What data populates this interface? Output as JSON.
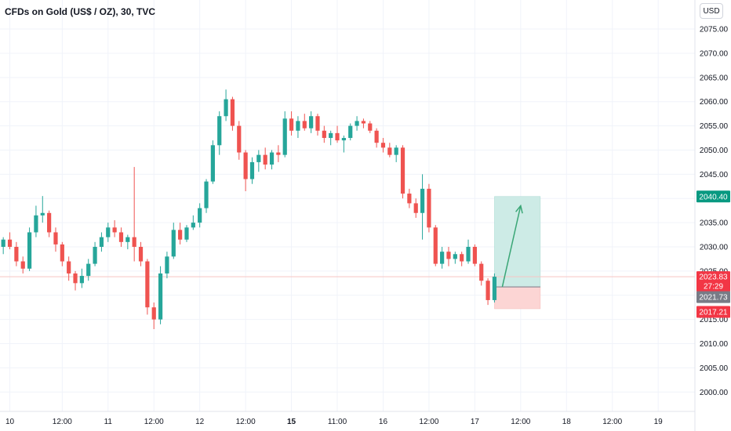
{
  "header": {
    "title": "CFDs on Gold (US$ / OZ), 30, TVC",
    "currency": "USD"
  },
  "colors": {
    "up": "#26a69a",
    "down": "#ef5350",
    "grid": "#f0f3fa",
    "axis_text": "#131722",
    "profit_zone": "#cdebe6",
    "loss_zone": "#fcd5d4",
    "current_price_line": "#f7c5c3",
    "arrow": "#3aa676",
    "label_green": "#089981",
    "label_red": "#f23645",
    "label_gray": "#787b86"
  },
  "chart_data": {
    "type": "candlestick",
    "title": "CFDs on Gold (US$ / OZ), 30, TVC",
    "xlabel": "",
    "ylabel": "",
    "ylim": [
      1996,
      2081
    ],
    "xlim": [
      0,
      106
    ],
    "grid": true,
    "y_ticks": [
      2000,
      2005,
      2010,
      2015,
      2020,
      2025,
      2030,
      2035,
      2040,
      2045,
      2050,
      2055,
      2060,
      2065,
      2070,
      2075
    ],
    "y_tick_labels": [
      "2000.00",
      "2005.00",
      "2010.00",
      "2015.00",
      "2020.00",
      "2025.00",
      "2030.00",
      "2035.00",
      "2040.00",
      "2045.00",
      "2050.00",
      "2055.00",
      "2060.00",
      "2065.00",
      "2070.00",
      "2075.00"
    ],
    "x_ticks": [
      {
        "label": "10",
        "t": 1.5,
        "bold": false
      },
      {
        "label": "12:00",
        "t": 9.5,
        "bold": false
      },
      {
        "label": "11",
        "t": 16.5,
        "bold": false
      },
      {
        "label": "12:00",
        "t": 23.5,
        "bold": false
      },
      {
        "label": "12",
        "t": 30.5,
        "bold": false
      },
      {
        "label": "12:00",
        "t": 37.5,
        "bold": false
      },
      {
        "label": "15",
        "t": 44.5,
        "bold": true
      },
      {
        "label": "11:00",
        "t": 51.5,
        "bold": false
      },
      {
        "label": "16",
        "t": 58.5,
        "bold": false
      },
      {
        "label": "12:00",
        "t": 65.5,
        "bold": false
      },
      {
        "label": "17",
        "t": 72.5,
        "bold": false
      },
      {
        "label": "12:00",
        "t": 79.5,
        "bold": false
      },
      {
        "label": "18",
        "t": 86.5,
        "bold": false
      },
      {
        "label": "12:00",
        "t": 93.5,
        "bold": false
      },
      {
        "label": "19",
        "t": 100.5,
        "bold": false
      }
    ],
    "candles": [
      [
        2030.0,
        2032.0,
        2028.5,
        2031.5
      ],
      [
        2031.5,
        2033.0,
        2029.5,
        2030.0
      ],
      [
        2030.0,
        2031.0,
        2026.0,
        2027.0
      ],
      [
        2027.0,
        2028.0,
        2024.5,
        2025.5
      ],
      [
        2025.5,
        2034.0,
        2025.0,
        2033.0
      ],
      [
        2033.0,
        2038.5,
        2032.0,
        2036.5
      ],
      [
        2036.5,
        2040.5,
        2035.0,
        2037.0
      ],
      [
        2037.0,
        2037.5,
        2032.0,
        2033.0
      ],
      [
        2033.0,
        2034.0,
        2029.0,
        2030.5
      ],
      [
        2030.5,
        2031.0,
        2026.0,
        2027.0
      ],
      [
        2027.0,
        2028.0,
        2023.0,
        2024.5
      ],
      [
        2024.5,
        2025.0,
        2021.0,
        2022.5
      ],
      [
        2022.5,
        2025.5,
        2021.5,
        2024.0
      ],
      [
        2024.0,
        2027.5,
        2023.0,
        2026.5
      ],
      [
        2026.5,
        2031.0,
        2026.0,
        2030.0
      ],
      [
        2030.0,
        2033.0,
        2029.0,
        2032.0
      ],
      [
        2032.0,
        2035.0,
        2031.0,
        2034.0
      ],
      [
        2034.0,
        2035.5,
        2032.0,
        2033.0
      ],
      [
        2033.0,
        2034.0,
        2030.0,
        2031.0
      ],
      [
        2031.0,
        2032.5,
        2029.5,
        2032.0
      ],
      [
        2032.0,
        2046.5,
        2027.0,
        2030.0
      ],
      [
        2030.0,
        2031.0,
        2026.0,
        2027.0
      ],
      [
        2027.0,
        2027.5,
        2016.0,
        2017.5
      ],
      [
        2017.5,
        2018.5,
        2013.0,
        2015.0
      ],
      [
        2015.0,
        2026.0,
        2014.0,
        2024.5
      ],
      [
        2024.5,
        2029.0,
        2023.5,
        2028.0
      ],
      [
        2028.0,
        2035.0,
        2027.5,
        2033.5
      ],
      [
        2033.5,
        2035.0,
        2030.5,
        2031.5
      ],
      [
        2031.5,
        2034.5,
        2031.0,
        2034.0
      ],
      [
        2034.0,
        2036.5,
        2033.5,
        2035.0
      ],
      [
        2035.0,
        2039.0,
        2034.0,
        2038.0
      ],
      [
        2038.0,
        2044.0,
        2037.0,
        2043.5
      ],
      [
        2043.5,
        2052.0,
        2043.0,
        2051.0
      ],
      [
        2051.0,
        2058.0,
        2049.0,
        2057.0
      ],
      [
        2057.0,
        2062.5,
        2056.0,
        2060.5
      ],
      [
        2060.5,
        2061.0,
        2054.0,
        2055.0
      ],
      [
        2055.0,
        2056.0,
        2048.0,
        2049.5
      ],
      [
        2049.5,
        2050.0,
        2041.5,
        2044.0
      ],
      [
        2044.0,
        2048.5,
        2043.0,
        2047.5
      ],
      [
        2047.5,
        2050.0,
        2045.5,
        2049.0
      ],
      [
        2049.0,
        2050.5,
        2046.0,
        2047.0
      ],
      [
        2047.0,
        2050.0,
        2046.0,
        2049.5
      ],
      [
        2049.5,
        2051.0,
        2047.5,
        2049.0
      ],
      [
        2049.0,
        2058.0,
        2048.5,
        2056.5
      ],
      [
        2056.5,
        2058.0,
        2053.0,
        2054.0
      ],
      [
        2054.0,
        2057.0,
        2052.5,
        2056.0
      ],
      [
        2056.0,
        2057.5,
        2054.0,
        2054.5
      ],
      [
        2054.5,
        2058.0,
        2053.5,
        2057.0
      ],
      [
        2057.0,
        2057.5,
        2053.0,
        2054.0
      ],
      [
        2054.0,
        2055.0,
        2051.5,
        2052.5
      ],
      [
        2052.5,
        2054.0,
        2051.0,
        2053.5
      ],
      [
        2053.5,
        2055.0,
        2051.5,
        2052.0
      ],
      [
        2052.0,
        2053.0,
        2049.5,
        2052.5
      ],
      [
        2052.5,
        2055.5,
        2052.0,
        2055.0
      ],
      [
        2055.0,
        2057.0,
        2054.0,
        2056.0
      ],
      [
        2056.0,
        2056.5,
        2054.5,
        2055.5
      ],
      [
        2055.5,
        2056.0,
        2053.5,
        2054.0
      ],
      [
        2054.0,
        2054.5,
        2050.5,
        2051.5
      ],
      [
        2051.5,
        2052.5,
        2049.5,
        2050.5
      ],
      [
        2050.5,
        2051.5,
        2048.5,
        2049.0
      ],
      [
        2049.0,
        2051.0,
        2047.5,
        2050.5
      ],
      [
        2050.5,
        2051.0,
        2040.0,
        2041.0
      ],
      [
        2041.0,
        2042.0,
        2038.0,
        2039.0
      ],
      [
        2039.0,
        2040.0,
        2036.0,
        2037.0
      ],
      [
        2037.0,
        2045.0,
        2031.5,
        2042.0
      ],
      [
        2042.0,
        2043.0,
        2033.0,
        2034.0
      ],
      [
        2034.0,
        2034.5,
        2026.0,
        2026.5
      ],
      [
        2026.5,
        2030.0,
        2025.5,
        2029.0
      ],
      [
        2029.0,
        2030.0,
        2026.0,
        2027.5
      ],
      [
        2027.5,
        2029.0,
        2026.5,
        2028.5
      ],
      [
        2028.5,
        2029.0,
        2026.0,
        2027.0
      ],
      [
        2027.0,
        2031.5,
        2026.5,
        2030.0
      ],
      [
        2030.0,
        2030.5,
        2026.0,
        2026.5
      ],
      [
        2026.5,
        2027.0,
        2022.0,
        2023.0
      ],
      [
        2023.0,
        2023.5,
        2018.0,
        2019.0
      ],
      [
        2019.0,
        2024.5,
        2018.5,
        2023.83
      ]
    ],
    "current_price": 2023.83,
    "current_price_label": "2023.83",
    "countdown_label": "27:29",
    "entry_price": 2021.73,
    "entry_price_label": "2021.73",
    "target_price": 2040.4,
    "target_price_label": "2040.40",
    "stop_price": 2017.21,
    "stop_price_label": "2017.21",
    "position_start_t": 75.5,
    "position_end_t": 82.5,
    "arrow_end_t": 79.5,
    "arrow_end_price": 2038.5
  }
}
